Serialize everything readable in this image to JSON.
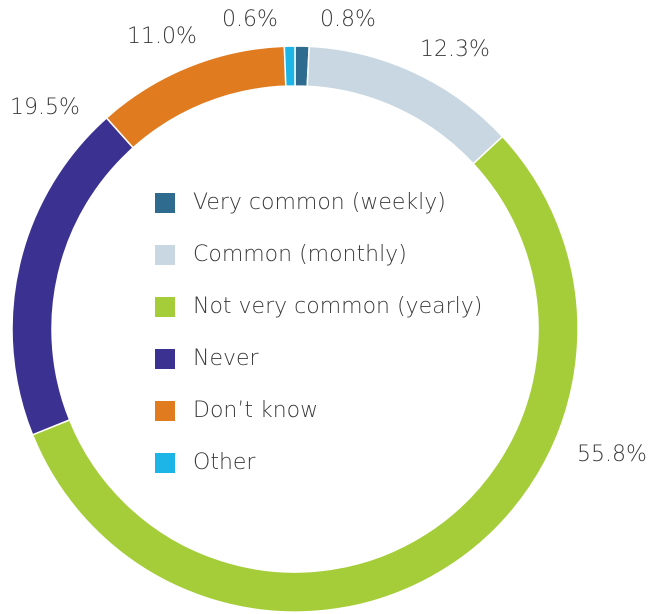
{
  "chart_data": {
    "type": "donut",
    "categories": [
      "Very common (weekly)",
      "Common (monthly)",
      "Not very common (yearly)",
      "Never",
      "Don’t know",
      "Other"
    ],
    "values": [
      0.8,
      12.3,
      55.8,
      19.5,
      11.0,
      0.6
    ],
    "value_labels": [
      "0.8%",
      "12.3%",
      "55.8%",
      "19.5%",
      "11.0%",
      "0.6%"
    ],
    "colors": [
      "#2f6b8e",
      "#c8d7e1",
      "#a5cd39",
      "#3a3191",
      "#e07b20",
      "#1db4e8"
    ],
    "legend": true
  }
}
